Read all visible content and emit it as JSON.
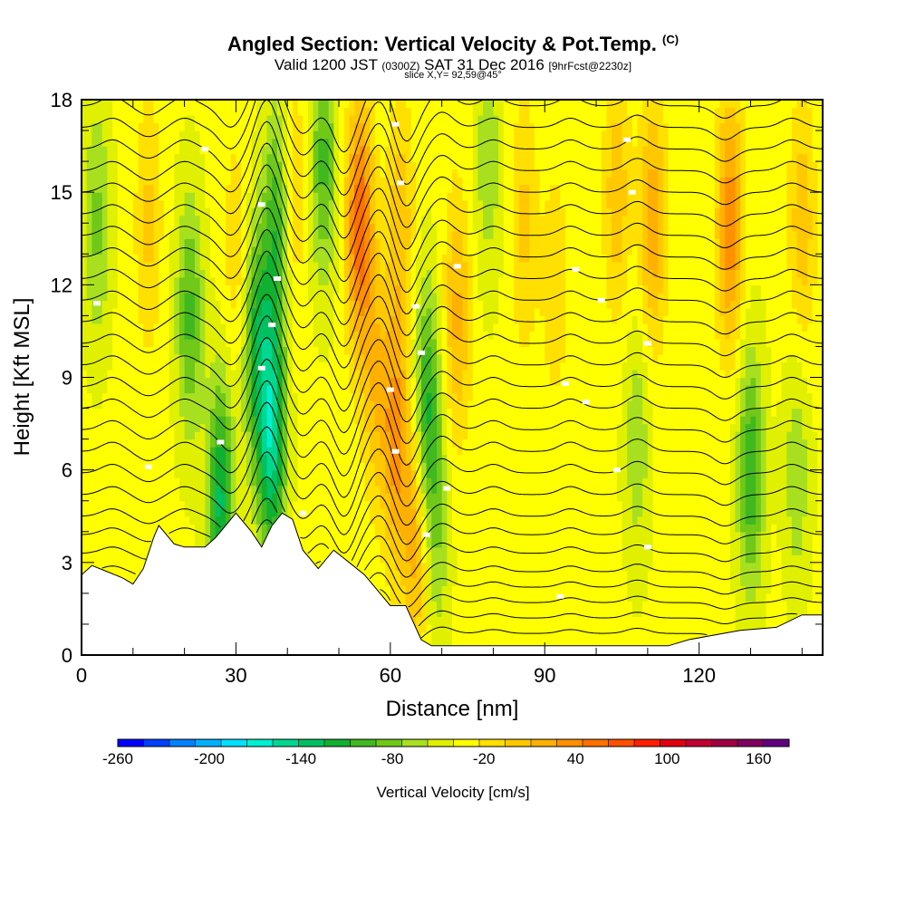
{
  "header": {
    "title": "Angled Section: Vertical Velocity & Pot.Temp.",
    "title_tag": "(C)",
    "valid_prefix": "Valid 1200 JST",
    "valid_z": "(0300Z)",
    "valid_date": "SAT 31 Dec 2016",
    "valid_fcst": "[9hrFcst@2230z]",
    "slice": "slice X,Y= 92,59@45°"
  },
  "chart_data": {
    "type": "heatmap",
    "xlabel": "Distance [nm]",
    "ylabel": "Height [Kft MSL]",
    "xlim": [
      0,
      144
    ],
    "ylim": [
      0,
      18
    ],
    "x_ticks": [
      0,
      30,
      60,
      90,
      120
    ],
    "y_ticks": [
      0,
      3,
      6,
      9,
      12,
      15,
      18
    ],
    "colorbar": {
      "label": "Vertical Velocity [cm/s]",
      "tick_labels": [
        "-260",
        "-200",
        "-140",
        "-80",
        "-20",
        "40",
        "100",
        "160"
      ],
      "tick_values": [
        -260,
        -200,
        -140,
        -80,
        -20,
        40,
        100,
        160
      ],
      "min": -260,
      "max": 180,
      "step": 20,
      "colors": [
        "#0000ff",
        "#0040ff",
        "#0080ff",
        "#00b0ff",
        "#00e0ff",
        "#00f0d0",
        "#00d890",
        "#00c060",
        "#10b030",
        "#40b820",
        "#70c818",
        "#a8e020",
        "#e0f000",
        "#ffff00",
        "#ffe000",
        "#ffc800",
        "#ffb000",
        "#ff9000",
        "#ff7000",
        "#ff5000",
        "#ff2000",
        "#e00010",
        "#c00030",
        "#a00040",
        "#800060",
        "#600080"
      ]
    },
    "velocity_features": [
      {
        "x": 3,
        "y": 14,
        "w": -50
      },
      {
        "x": 13,
        "y": 14,
        "w": 40
      },
      {
        "x": 21,
        "y": 11,
        "w": -70
      },
      {
        "x": 27,
        "y": 5,
        "w": -110
      },
      {
        "x": 30,
        "y": 13,
        "w": 30
      },
      {
        "x": 34,
        "y": 10,
        "w": -90
      },
      {
        "x": 37,
        "y": 7,
        "w": -130
      },
      {
        "x": 38,
        "y": 14,
        "w": -80
      },
      {
        "x": 41,
        "y": 15,
        "w": 40
      },
      {
        "x": 47,
        "y": 16,
        "w": -70
      },
      {
        "x": 54,
        "y": 14,
        "w": 110
      },
      {
        "x": 57,
        "y": 9,
        "w": 50
      },
      {
        "x": 61,
        "y": 7,
        "w": 80
      },
      {
        "x": 62,
        "y": 14,
        "w": 50
      },
      {
        "x": 65,
        "y": 4,
        "w": 70
      },
      {
        "x": 67,
        "y": 8,
        "w": -90
      },
      {
        "x": 69,
        "y": 4,
        "w": -40
      },
      {
        "x": 73,
        "y": 11,
        "w": 60
      },
      {
        "x": 79,
        "y": 16,
        "w": -40
      },
      {
        "x": 86,
        "y": 14,
        "w": 40
      },
      {
        "x": 92,
        "y": 12,
        "w": 30
      },
      {
        "x": 104,
        "y": 15,
        "w": 50
      },
      {
        "x": 108,
        "y": 7,
        "w": -40
      },
      {
        "x": 111,
        "y": 14,
        "w": 70
      },
      {
        "x": 126,
        "y": 14,
        "w": 90
      },
      {
        "x": 130,
        "y": 6,
        "w": -80
      },
      {
        "x": 139,
        "y": 6,
        "w": -40
      },
      {
        "x": 140,
        "y": 14,
        "w": 50
      }
    ],
    "terrain": {
      "x": [
        0,
        2,
        5,
        8,
        10,
        12,
        14,
        15,
        16,
        18,
        20,
        24,
        26,
        28,
        30,
        33,
        35,
        37,
        39,
        41,
        43,
        46,
        49,
        52,
        55,
        58,
        60,
        63,
        66,
        68,
        72,
        80,
        90,
        100,
        110,
        114,
        118,
        128,
        135,
        140,
        144
      ],
      "y": [
        2.6,
        2.9,
        2.7,
        2.5,
        2.3,
        2.8,
        3.8,
        4.2,
        4.0,
        3.6,
        3.5,
        3.5,
        3.8,
        4.2,
        4.6,
        4.0,
        3.5,
        4.2,
        4.6,
        4.4,
        3.4,
        2.8,
        3.4,
        3.0,
        2.6,
        2.0,
        1.6,
        1.6,
        0.5,
        0.3,
        0.3,
        0.3,
        0.3,
        0.3,
        0.3,
        0.3,
        0.5,
        0.8,
        0.9,
        1.3,
        1.3
      ]
    },
    "theta_levels": [
      {
        "level": 3,
        "y0": 0.7
      },
      {
        "level": 4,
        "y0": 1.2
      },
      {
        "level": 5,
        "y0": 1.7
      },
      {
        "level": 6,
        "y0": 2.2
      },
      {
        "level": 7,
        "y0": 2.7
      },
      {
        "level": 8,
        "y0": 3.3
      },
      {
        "level": 9,
        "y0": 3.9
      },
      {
        "level": 10,
        "y0": 4.5
      },
      {
        "level": 11,
        "y0": 5.2
      },
      {
        "level": 12,
        "y0": 5.9
      },
      {
        "level": 13,
        "y0": 6.6
      },
      {
        "level": 14,
        "y0": 7.3
      },
      {
        "level": 15,
        "y0": 8.0
      },
      {
        "level": 16,
        "y0": 8.7
      },
      {
        "level": 17,
        "y0": 9.4
      },
      {
        "level": 18,
        "y0": 10.1
      },
      {
        "level": 19,
        "y0": 10.8
      },
      {
        "level": 20,
        "y0": 11.5
      },
      {
        "level": 21,
        "y0": 12.2
      },
      {
        "level": 22,
        "y0": 12.9
      },
      {
        "level": 23,
        "y0": 13.6
      },
      {
        "level": 24,
        "y0": 14.3
      },
      {
        "level": 25,
        "y0": 15.0
      },
      {
        "level": 26,
        "y0": 15.7
      },
      {
        "level": 27,
        "y0": 16.4
      },
      {
        "level": 28,
        "y0": 17.1
      },
      {
        "level": 29,
        "y0": 17.8
      }
    ],
    "theta_waves": [
      {
        "x": 6,
        "amp": 0.3
      },
      {
        "x": 13,
        "amp": -0.3
      },
      {
        "x": 20,
        "amp": 0.3
      },
      {
        "x": 29,
        "amp": -0.7
      },
      {
        "x": 36,
        "amp": 1.6
      },
      {
        "x": 43,
        "amp": -0.9
      },
      {
        "x": 51,
        "amp": -1.5
      },
      {
        "x": 58,
        "amp": 0.9
      },
      {
        "x": 63,
        "amp": -1.2
      },
      {
        "x": 70,
        "amp": 0.5
      },
      {
        "x": 80,
        "amp": 0.3
      },
      {
        "x": 95,
        "amp": 0.3
      },
      {
        "x": 108,
        "amp": 0.4
      },
      {
        "x": 125,
        "amp": -0.4
      },
      {
        "x": 138,
        "amp": 0.3
      }
    ],
    "theta_label_positions": [
      {
        "x": 3,
        "y": 11.4
      },
      {
        "x": 13,
        "y": 6.1
      },
      {
        "x": 24,
        "y": 16.4
      },
      {
        "x": 27,
        "y": 6.9
      },
      {
        "x": 35,
        "y": 14.6
      },
      {
        "x": 35,
        "y": 9.3
      },
      {
        "x": 37,
        "y": 10.7
      },
      {
        "x": 38,
        "y": 12.2
      },
      {
        "x": 43,
        "y": 4.6
      },
      {
        "x": 60,
        "y": 8.6
      },
      {
        "x": 61,
        "y": 6.6
      },
      {
        "x": 61,
        "y": 17.2
      },
      {
        "x": 62,
        "y": 15.3
      },
      {
        "x": 65,
        "y": 11.3
      },
      {
        "x": 66,
        "y": 9.8
      },
      {
        "x": 67,
        "y": 3.9
      },
      {
        "x": 71,
        "y": 5.4
      },
      {
        "x": 73,
        "y": 12.6
      },
      {
        "x": 93,
        "y": 1.9
      },
      {
        "x": 94,
        "y": 8.8
      },
      {
        "x": 96,
        "y": 12.5
      },
      {
        "x": 98,
        "y": 8.2
      },
      {
        "x": 101,
        "y": 11.5
      },
      {
        "x": 104,
        "y": 6.0
      },
      {
        "x": 106,
        "y": 16.7
      },
      {
        "x": 107,
        "y": 15.0
      },
      {
        "x": 110,
        "y": 10.1
      },
      {
        "x": 110,
        "y": 3.5
      }
    ]
  }
}
